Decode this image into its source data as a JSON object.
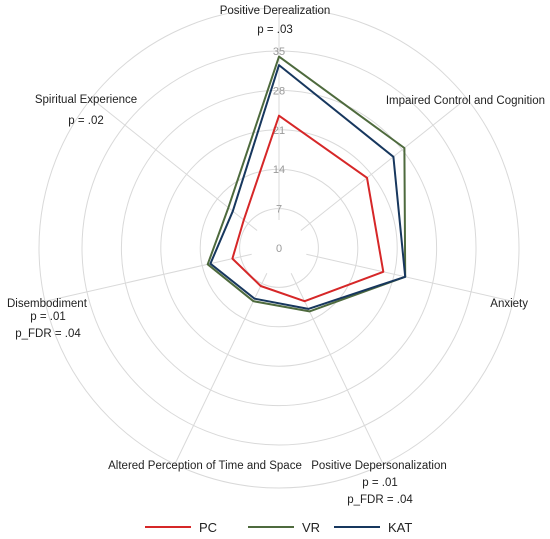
{
  "chart_data": {
    "type": "radar",
    "title": "",
    "rmax": 35,
    "ticks": [
      0,
      7,
      14,
      21,
      28,
      35
    ],
    "axes": [
      {
        "label": "Positive Derealization",
        "annotations": [
          "p = .03"
        ]
      },
      {
        "label": "Impaired Control and Cognition",
        "annotations": []
      },
      {
        "label": "Anxiety",
        "annotations": []
      },
      {
        "label": "Positive Depersonalization",
        "annotations": [
          "p = .01",
          "p_FDR = .04"
        ]
      },
      {
        "label": "Altered Perception of Time and Space",
        "annotations": []
      },
      {
        "label": "Disembodiment",
        "annotations": [
          "p = .01",
          "p_FDR = .04"
        ]
      },
      {
        "label": "Spiritual Experience",
        "annotations": [
          "p = .02"
        ]
      }
    ],
    "series": [
      {
        "name": "PC",
        "color": "#d62728",
        "values": [
          23.5,
          20.0,
          19.0,
          10.5,
          7.5,
          8.5,
          8.0
        ]
      },
      {
        "name": "VR",
        "color": "#4e6a3d",
        "values": [
          34.0,
          28.5,
          23.0,
          12.5,
          10.5,
          13.0,
          11.5
        ]
      },
      {
        "name": "KAT",
        "color": "#17375e",
        "values": [
          32.5,
          26.0,
          23.0,
          12.0,
          10.0,
          12.5,
          10.5
        ]
      }
    ],
    "grid": true,
    "legend_position": "bottom"
  }
}
